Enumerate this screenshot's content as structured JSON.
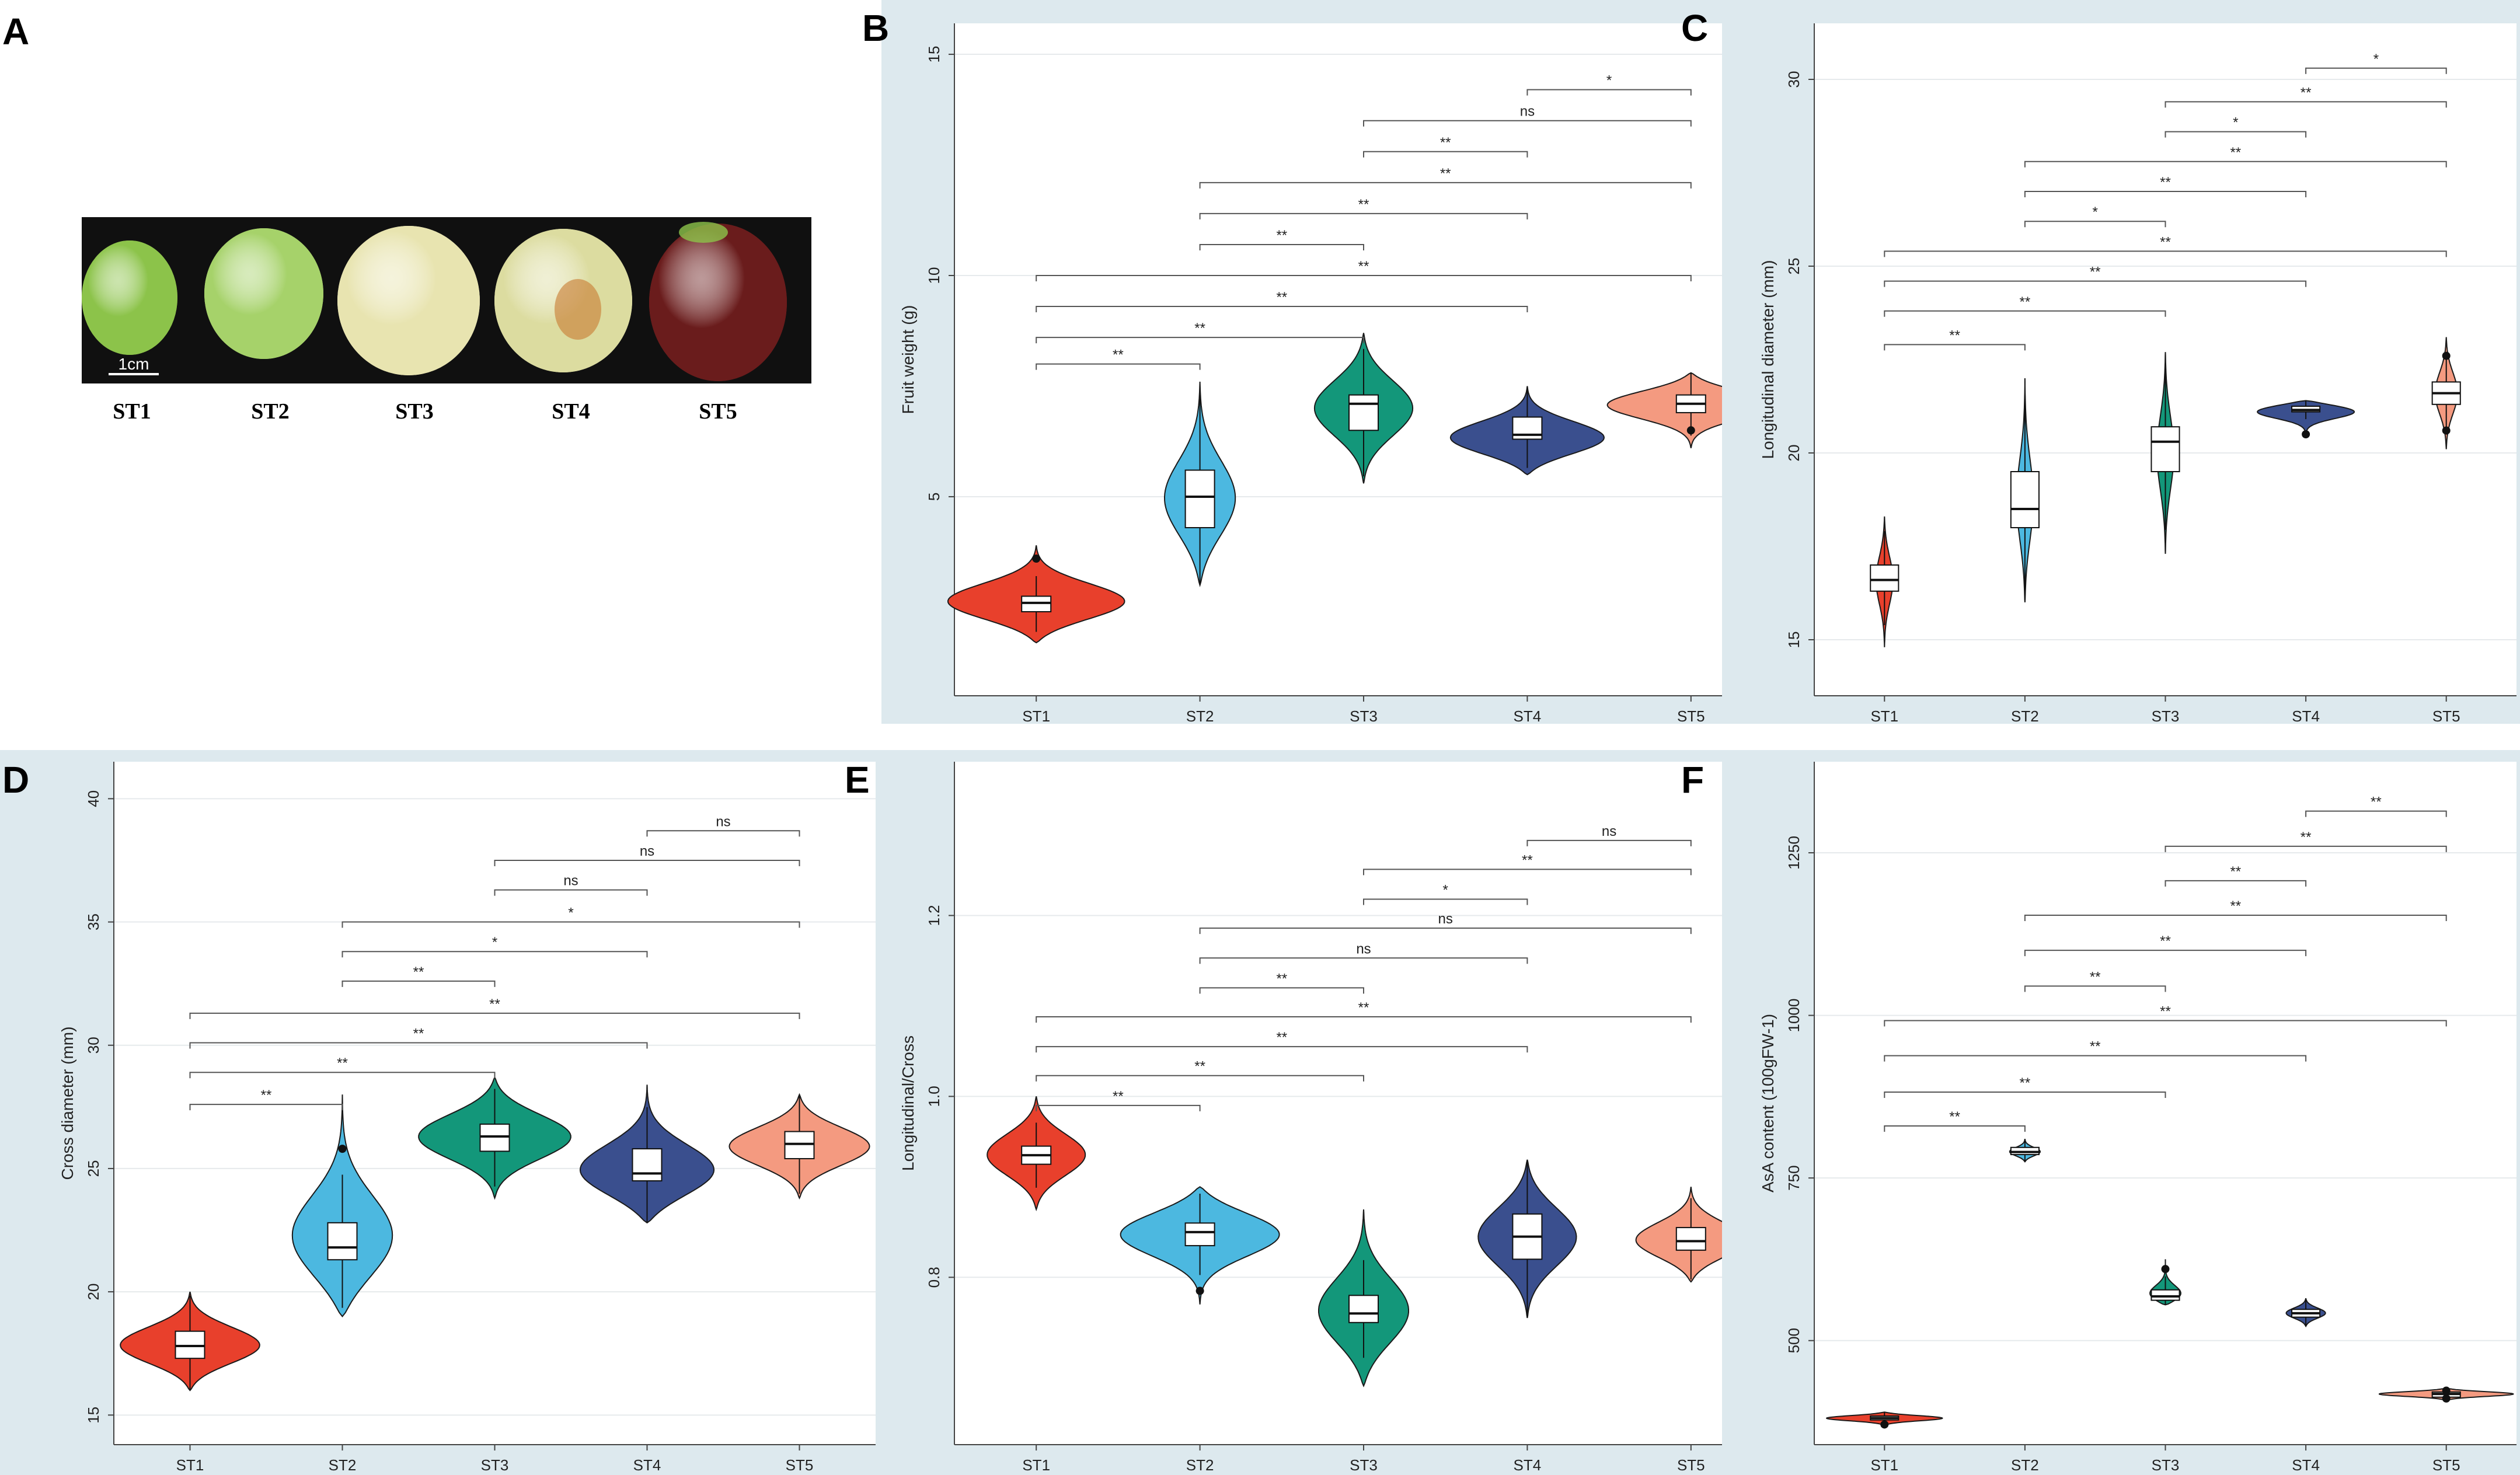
{
  "panel_a": {
    "letter": "A",
    "scale_bar_label": "1cm",
    "stage_labels": [
      "ST1",
      "ST2",
      "ST3",
      "ST4",
      "ST5"
    ],
    "fruit_colors": [
      "#8cc34a",
      "#a6d26a",
      "#e8e4b0",
      "#dcdca0",
      "#6a1c1c"
    ]
  },
  "chart_data": [
    {
      "panel": "B",
      "type": "violin",
      "categories": [
        "ST1",
        "ST2",
        "ST3",
        "ST4",
        "ST5"
      ],
      "ylabel": "Fruit weight (g)",
      "ylim": [
        0.5,
        15.7
      ],
      "yticks": [
        5,
        10,
        15
      ],
      "colors": [
        "#e8402c",
        "#4cb8e0",
        "#13977a",
        "#3a4f8e",
        "#f49a80"
      ],
      "violins": [
        {
          "min": 1.7,
          "max": 3.9,
          "q1": 2.4,
          "median": 2.6,
          "q3": 2.75,
          "mode": 2.6,
          "halfwidth": 0.55,
          "outliers": [
            3.6
          ]
        },
        {
          "min": 3.0,
          "max": 7.6,
          "q1": 4.3,
          "median": 5.0,
          "q3": 5.6,
          "mode": 4.9,
          "halfwidth": 0.22,
          "outliers": []
        },
        {
          "min": 5.3,
          "max": 8.7,
          "q1": 6.5,
          "median": 7.1,
          "q3": 7.3,
          "mode": 7.0,
          "halfwidth": 0.3,
          "outliers": []
        },
        {
          "min": 5.5,
          "max": 7.5,
          "q1": 6.3,
          "median": 6.4,
          "q3": 6.8,
          "mode": 6.3,
          "halfwidth": 0.48,
          "outliers": []
        },
        {
          "min": 6.1,
          "max": 7.8,
          "q1": 6.9,
          "median": 7.1,
          "q3": 7.3,
          "mode": 7.1,
          "halfwidth": 0.52,
          "outliers": [
            6.5
          ]
        }
      ],
      "comparisons": [
        {
          "from": 1,
          "to": 2,
          "y": 8.0,
          "label": "**"
        },
        {
          "from": 1,
          "to": 3,
          "y": 8.6,
          "label": "**"
        },
        {
          "from": 1,
          "to": 4,
          "y": 9.3,
          "label": "**"
        },
        {
          "from": 1,
          "to": 5,
          "y": 10.0,
          "label": "**"
        },
        {
          "from": 2,
          "to": 3,
          "y": 10.7,
          "label": "**"
        },
        {
          "from": 2,
          "to": 4,
          "y": 11.4,
          "label": "**"
        },
        {
          "from": 2,
          "to": 5,
          "y": 12.1,
          "label": "**"
        },
        {
          "from": 3,
          "to": 4,
          "y": 12.8,
          "label": "**"
        },
        {
          "from": 3,
          "to": 5,
          "y": 13.5,
          "label": "ns"
        },
        {
          "from": 4,
          "to": 5,
          "y": 14.2,
          "label": "*"
        }
      ]
    },
    {
      "panel": "C",
      "type": "violin",
      "categories": [
        "ST1",
        "ST2",
        "ST3",
        "ST4",
        "ST5"
      ],
      "ylabel": "Longitudinal diameter (mm)",
      "ylim": [
        13.5,
        31.5
      ],
      "yticks": [
        15,
        20,
        25,
        30
      ],
      "colors": [
        "#e8402c",
        "#4cb8e0",
        "#13977a",
        "#3a4f8e",
        "#f49a80"
      ],
      "violins": [
        {
          "min": 14.8,
          "max": 18.3,
          "q1": 16.3,
          "median": 16.6,
          "q3": 17.0,
          "mode": 16.6,
          "halfwidth": 0.06,
          "outliers": []
        },
        {
          "min": 16.0,
          "max": 22.0,
          "q1": 18.0,
          "median": 18.5,
          "q3": 19.5,
          "mode": 18.7,
          "halfwidth": 0.06,
          "outliers": []
        },
        {
          "min": 17.3,
          "max": 22.7,
          "q1": 19.5,
          "median": 20.3,
          "q3": 20.7,
          "mode": 20.0,
          "halfwidth": 0.06,
          "outliers": []
        },
        {
          "min": 20.4,
          "max": 21.4,
          "q1": 21.1,
          "median": 21.15,
          "q3": 21.25,
          "mode": 21.15,
          "halfwidth": 0.4,
          "outliers": [
            20.5
          ]
        },
        {
          "min": 20.1,
          "max": 23.1,
          "q1": 21.3,
          "median": 21.6,
          "q3": 21.9,
          "mode": 21.6,
          "halfwidth": 0.08,
          "outliers": [
            22.6,
            20.6
          ]
        }
      ],
      "comparisons": [
        {
          "from": 1,
          "to": 2,
          "y": 22.9,
          "label": "**"
        },
        {
          "from": 1,
          "to": 3,
          "y": 23.8,
          "label": "**"
        },
        {
          "from": 1,
          "to": 4,
          "y": 24.6,
          "label": "**"
        },
        {
          "from": 1,
          "to": 5,
          "y": 25.4,
          "label": "**"
        },
        {
          "from": 2,
          "to": 3,
          "y": 26.2,
          "label": "*"
        },
        {
          "from": 2,
          "to": 4,
          "y": 27.0,
          "label": "**"
        },
        {
          "from": 2,
          "to": 5,
          "y": 27.8,
          "label": "**"
        },
        {
          "from": 3,
          "to": 4,
          "y": 28.6,
          "label": "*"
        },
        {
          "from": 3,
          "to": 5,
          "y": 29.4,
          "label": "**"
        },
        {
          "from": 4,
          "to": 5,
          "y": 30.3,
          "label": "*"
        }
      ]
    },
    {
      "panel": "D",
      "type": "violin",
      "categories": [
        "ST1",
        "ST2",
        "ST3",
        "ST4",
        "ST5"
      ],
      "ylabel": "Cross diameter (mm)",
      "ylim": [
        13.8,
        41.5
      ],
      "yticks": [
        15,
        20,
        25,
        30,
        35,
        40
      ],
      "colors": [
        "#e8402c",
        "#4cb8e0",
        "#13977a",
        "#3a4f8e",
        "#f49a80"
      ],
      "violins": [
        {
          "min": 16.0,
          "max": 20.0,
          "q1": 17.3,
          "median": 17.8,
          "q3": 18.4,
          "mode": 17.8,
          "halfwidth": 0.46,
          "outliers": []
        },
        {
          "min": 19.0,
          "max": 28.0,
          "q1": 21.3,
          "median": 21.8,
          "q3": 22.8,
          "mode": 22.0,
          "halfwidth": 0.35,
          "outliers": [
            25.8
          ]
        },
        {
          "min": 23.8,
          "max": 28.7,
          "q1": 25.7,
          "median": 26.3,
          "q3": 26.8,
          "mode": 26.3,
          "halfwidth": 0.5,
          "outliers": []
        },
        {
          "min": 22.8,
          "max": 28.4,
          "q1": 24.5,
          "median": 24.8,
          "q3": 25.8,
          "mode": 24.8,
          "halfwidth": 0.46,
          "outliers": []
        },
        {
          "min": 23.8,
          "max": 28.0,
          "q1": 25.4,
          "median": 26.0,
          "q3": 26.5,
          "mode": 25.9,
          "halfwidth": 0.46,
          "outliers": []
        }
      ],
      "comparisons": [
        {
          "from": 1,
          "to": 2,
          "y": 27.6,
          "label": "**"
        },
        {
          "from": 1,
          "to": 3,
          "y": 28.9,
          "label": "**"
        },
        {
          "from": 1,
          "to": 4,
          "y": 30.1,
          "label": "**"
        },
        {
          "from": 1,
          "to": 5,
          "y": 31.3,
          "label": "**"
        },
        {
          "from": 2,
          "to": 3,
          "y": 32.6,
          "label": "**"
        },
        {
          "from": 2,
          "to": 4,
          "y": 33.8,
          "label": "*"
        },
        {
          "from": 2,
          "to": 5,
          "y": 35.0,
          "label": "*"
        },
        {
          "from": 3,
          "to": 4,
          "y": 36.3,
          "label": "ns"
        },
        {
          "from": 3,
          "to": 5,
          "y": 37.5,
          "label": "ns"
        },
        {
          "from": 4,
          "to": 5,
          "y": 38.7,
          "label": "ns"
        }
      ]
    },
    {
      "panel": "E",
      "type": "violin",
      "categories": [
        "ST1",
        "ST2",
        "ST3",
        "ST4",
        "ST5"
      ],
      "ylabel": "Longitudinal/Cross",
      "ylim": [
        0.615,
        1.37
      ],
      "yticks": [
        0.8,
        1.0,
        1.2
      ],
      "yticklabels": [
        "0.8",
        "1.0",
        "1.2"
      ],
      "colors": [
        "#e8402c",
        "#4cb8e0",
        "#13977a",
        "#3a4f8e",
        "#f49a80"
      ],
      "violins": [
        {
          "min": 0.875,
          "max": 1.0,
          "q1": 0.925,
          "median": 0.935,
          "q3": 0.945,
          "mode": 0.935,
          "halfwidth": 0.3,
          "outliers": []
        },
        {
          "min": 0.77,
          "max": 0.9,
          "q1": 0.835,
          "median": 0.85,
          "q3": 0.86,
          "mode": 0.85,
          "halfwidth": 0.5,
          "outliers": [
            0.785
          ]
        },
        {
          "min": 0.68,
          "max": 0.875,
          "q1": 0.75,
          "median": 0.76,
          "q3": 0.78,
          "mode": 0.76,
          "halfwidth": 0.28,
          "outliers": []
        },
        {
          "min": 0.755,
          "max": 0.93,
          "q1": 0.82,
          "median": 0.845,
          "q3": 0.87,
          "mode": 0.845,
          "halfwidth": 0.3,
          "outliers": []
        },
        {
          "min": 0.795,
          "max": 0.9,
          "q1": 0.83,
          "median": 0.84,
          "q3": 0.855,
          "mode": 0.84,
          "halfwidth": 0.34,
          "outliers": []
        }
      ],
      "comparisons": [
        {
          "from": 1,
          "to": 2,
          "y": 0.99,
          "label": "**"
        },
        {
          "from": 1,
          "to": 3,
          "y": 1.023,
          "label": "**"
        },
        {
          "from": 1,
          "to": 4,
          "y": 1.055,
          "label": "**"
        },
        {
          "from": 1,
          "to": 5,
          "y": 1.088,
          "label": "**"
        },
        {
          "from": 2,
          "to": 3,
          "y": 1.12,
          "label": "**"
        },
        {
          "from": 2,
          "to": 4,
          "y": 1.153,
          "label": "ns"
        },
        {
          "from": 2,
          "to": 5,
          "y": 1.186,
          "label": "ns"
        },
        {
          "from": 3,
          "to": 4,
          "y": 1.218,
          "label": "*"
        },
        {
          "from": 3,
          "to": 5,
          "y": 1.251,
          "label": "**"
        },
        {
          "from": 4,
          "to": 5,
          "y": 1.283,
          "label": "ns"
        }
      ]
    },
    {
      "panel": "F",
      "type": "violin",
      "categories": [
        "ST1",
        "ST2",
        "ST3",
        "ST4",
        "ST5"
      ],
      "ylabel": "AsA content (100gFW-1)",
      "ylim": [
        340,
        1390
      ],
      "yticks": [
        500,
        750,
        1000,
        1250
      ],
      "colors": [
        "#e8402c",
        "#4cb8e0",
        "#13977a",
        "#3a4f8e",
        "#f49a80"
      ],
      "violins": [
        {
          "min": 368,
          "max": 390,
          "q1": 378,
          "median": 381,
          "q3": 384,
          "mode": 381,
          "halfwidth": 0.42,
          "outliers": [
            371
          ]
        },
        {
          "min": 775,
          "max": 810,
          "q1": 786,
          "median": 790,
          "q3": 797,
          "mode": 790,
          "halfwidth": 0.11,
          "outliers": []
        },
        {
          "min": 555,
          "max": 625,
          "q1": 562,
          "median": 568,
          "q3": 578,
          "mode": 568,
          "halfwidth": 0.14,
          "outliers": [
            610
          ]
        },
        {
          "min": 522,
          "max": 565,
          "q1": 536,
          "median": 542,
          "q3": 548,
          "mode": 542,
          "halfwidth": 0.14,
          "outliers": []
        },
        {
          "min": 407,
          "max": 427,
          "q1": 413,
          "median": 418,
          "q3": 421,
          "mode": 418,
          "halfwidth": 0.48,
          "outliers": [
            423,
            411
          ]
        }
      ],
      "comparisons": [
        {
          "from": 1,
          "to": 2,
          "y": 830,
          "label": "**"
        },
        {
          "from": 1,
          "to": 3,
          "y": 882,
          "label": "**"
        },
        {
          "from": 1,
          "to": 4,
          "y": 938,
          "label": "**"
        },
        {
          "from": 1,
          "to": 5,
          "y": 992,
          "label": "**"
        },
        {
          "from": 2,
          "to": 3,
          "y": 1045,
          "label": "**"
        },
        {
          "from": 2,
          "to": 4,
          "y": 1100,
          "label": "**"
        },
        {
          "from": 2,
          "to": 5,
          "y": 1154,
          "label": "**"
        },
        {
          "from": 3,
          "to": 4,
          "y": 1207,
          "label": "**"
        },
        {
          "from": 3,
          "to": 5,
          "y": 1260,
          "label": "**"
        },
        {
          "from": 4,
          "to": 5,
          "y": 1314,
          "label": "**"
        }
      ]
    }
  ]
}
